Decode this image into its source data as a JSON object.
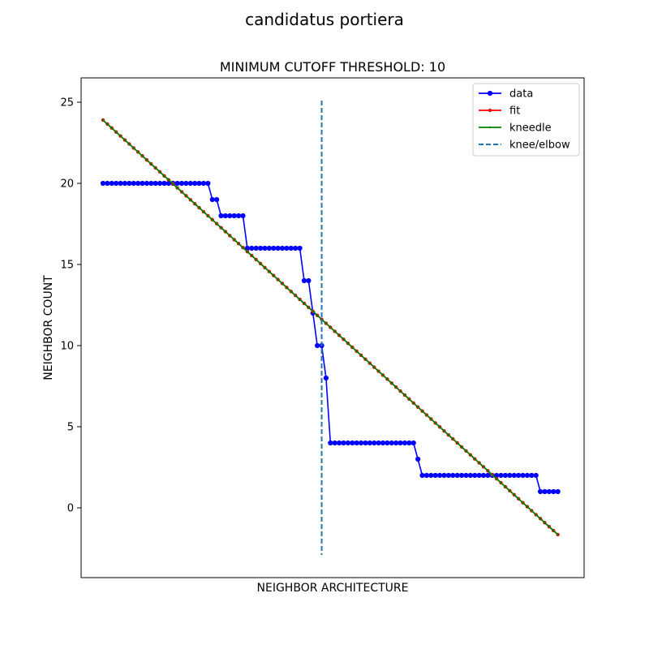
{
  "suptitle": "candidatus portiera",
  "chart_data": {
    "type": "line",
    "title": "MINIMUM CUTOFF THRESHOLD: 10",
    "xlabel": "NEIGHBOR ARCHITECTURE",
    "ylabel": "NEIGHBOR COUNT",
    "ylim": [
      -4.3,
      26.5
    ],
    "xlim": [
      -5,
      110
    ],
    "y_ticks": [
      "0",
      "5",
      "10",
      "15",
      "20",
      "25"
    ],
    "grid": false,
    "legend_position": "top-right",
    "knee_x": 50,
    "knee_ymin": -2.9,
    "knee_ymax": 25.1,
    "series": [
      {
        "name": "data",
        "color": "#0000ff",
        "marker": "circle",
        "x": [
          0,
          1,
          2,
          3,
          4,
          5,
          6,
          7,
          8,
          9,
          10,
          11,
          12,
          13,
          14,
          15,
          16,
          17,
          18,
          19,
          20,
          21,
          22,
          23,
          24,
          25,
          26,
          27,
          28,
          29,
          30,
          31,
          32,
          33,
          34,
          35,
          36,
          37,
          38,
          39,
          40,
          41,
          42,
          43,
          44,
          45,
          46,
          47,
          48,
          49,
          50,
          51,
          52,
          53,
          54,
          55,
          56,
          57,
          58,
          59,
          60,
          61,
          62,
          63,
          64,
          65,
          66,
          67,
          68,
          69,
          70,
          71,
          72,
          73,
          74,
          75,
          76,
          77,
          78,
          79,
          80,
          81,
          82,
          83,
          84,
          85,
          86,
          87,
          88,
          89,
          90,
          91,
          92,
          93,
          94,
          95,
          96,
          97,
          98,
          99,
          100,
          101,
          102,
          103,
          104
        ],
        "y": [
          20,
          20,
          20,
          20,
          20,
          20,
          20,
          20,
          20,
          20,
          20,
          20,
          20,
          20,
          20,
          20,
          20,
          20,
          20,
          20,
          20,
          20,
          20,
          20,
          20,
          19,
          19,
          18,
          18,
          18,
          18,
          18,
          18,
          16,
          16,
          16,
          16,
          16,
          16,
          16,
          16,
          16,
          16,
          16,
          16,
          16,
          14,
          14,
          12,
          10,
          10,
          8,
          4,
          4,
          4,
          4,
          4,
          4,
          4,
          4,
          4,
          4,
          4,
          4,
          4,
          4,
          4,
          4,
          4,
          4,
          4,
          4,
          3,
          2,
          2,
          2,
          2,
          2,
          2,
          2,
          2,
          2,
          2,
          2,
          2,
          2,
          2,
          2,
          2,
          2,
          2,
          2,
          2,
          2,
          2,
          2,
          2,
          2,
          2,
          2,
          1,
          1,
          1,
          1,
          1
        ]
      },
      {
        "name": "fit",
        "color": "#ff0000",
        "marker": "circle",
        "x0": 0,
        "x1": 104,
        "y0": 23.9,
        "y1": -1.65,
        "n": 105
      },
      {
        "name": "kneedle",
        "color": "#008000",
        "marker": "dot",
        "x0": 0,
        "x1": 104,
        "y0": 23.9,
        "y1": -1.65,
        "n": 105
      },
      {
        "name": "knee/elbow",
        "color": "#1f77b4",
        "style": "dashed"
      }
    ]
  }
}
